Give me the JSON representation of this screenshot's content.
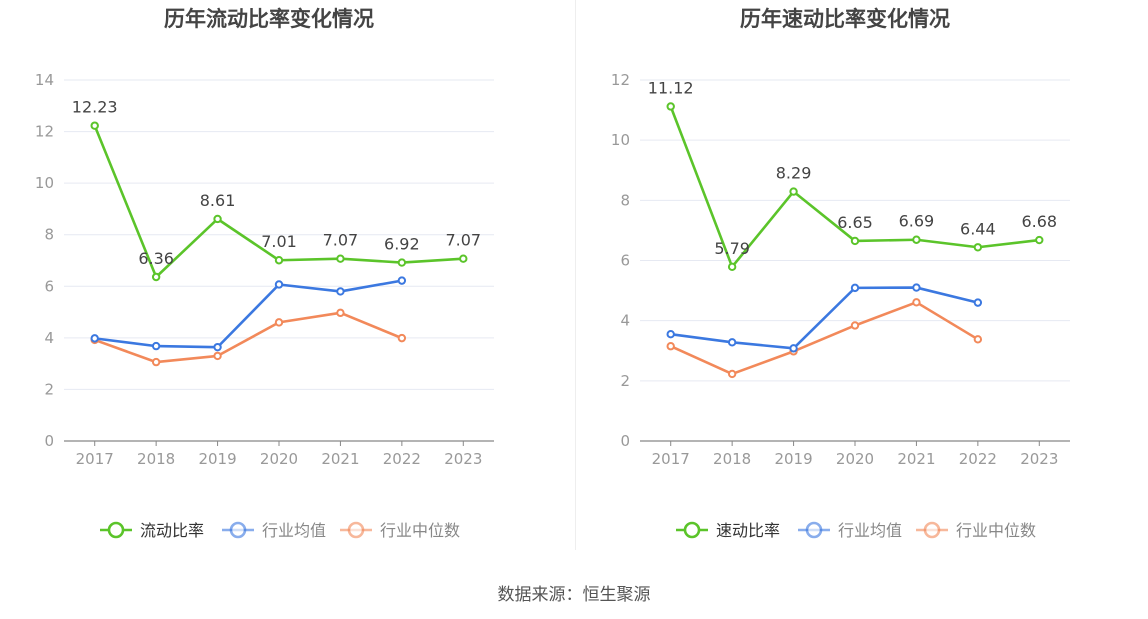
{
  "source_label": "数据来源：恒生聚源",
  "colors": {
    "primary": "#5bc42a",
    "average": "#3b78e0",
    "median": "#f2895a",
    "grid": "#e6e9f2",
    "axis": "#999999"
  },
  "chart_data": [
    {
      "type": "line",
      "title": "历年流动比率变化情况",
      "categories": [
        "2017",
        "2018",
        "2019",
        "2020",
        "2021",
        "2022",
        "2023"
      ],
      "ylim": [
        0,
        14
      ],
      "yticks": [
        0,
        2,
        4,
        6,
        8,
        10,
        12,
        14
      ],
      "legend_position": "bottom",
      "series": [
        {
          "name": "流动比率",
          "values": [
            12.23,
            6.36,
            8.61,
            7.01,
            7.07,
            6.92,
            7.07
          ],
          "labels": true
        },
        {
          "name": "行业均值",
          "values": [
            3.98,
            3.68,
            3.64,
            6.07,
            5.8,
            6.22,
            null
          ],
          "labels": false
        },
        {
          "name": "行业中位数",
          "values": [
            3.92,
            3.06,
            3.3,
            4.6,
            4.97,
            3.99,
            null
          ],
          "labels": false
        }
      ]
    },
    {
      "type": "line",
      "title": "历年速动比率变化情况",
      "categories": [
        "2017",
        "2018",
        "2019",
        "2020",
        "2021",
        "2022",
        "2023"
      ],
      "ylim": [
        0,
        12
      ],
      "yticks": [
        0,
        2,
        4,
        6,
        8,
        10,
        12
      ],
      "legend_position": "bottom",
      "series": [
        {
          "name": "速动比率",
          "values": [
            11.12,
            5.79,
            8.29,
            6.65,
            6.69,
            6.44,
            6.68
          ],
          "labels": true
        },
        {
          "name": "行业均值",
          "values": [
            3.55,
            3.28,
            3.08,
            5.09,
            5.1,
            4.6,
            null
          ],
          "labels": false
        },
        {
          "name": "行业中位数",
          "values": [
            3.15,
            2.23,
            2.98,
            3.84,
            4.61,
            3.38,
            null
          ],
          "labels": false
        }
      ]
    }
  ]
}
